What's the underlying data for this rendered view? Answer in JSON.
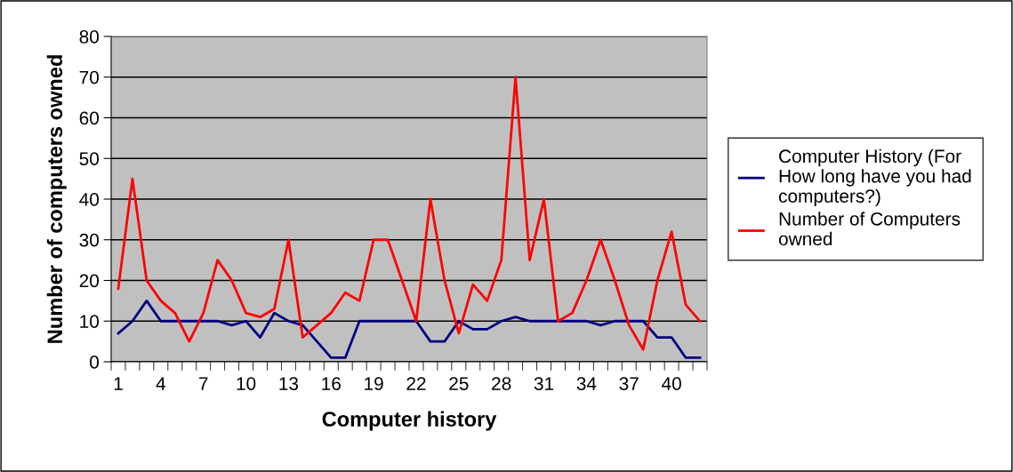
{
  "chart_data": {
    "type": "line",
    "xlabel": "Computer history",
    "ylabel": "Number of computers owned",
    "categories": [
      "1",
      null,
      null,
      "4",
      null,
      null,
      "7",
      null,
      null,
      "10",
      null,
      null,
      "13",
      null,
      null,
      "16",
      null,
      null,
      "19",
      null,
      null,
      "22",
      null,
      null,
      "25",
      null,
      null,
      "28",
      null,
      null,
      "31",
      null,
      null,
      "34",
      null,
      null,
      "37",
      null,
      null,
      "40",
      null,
      null
    ],
    "series": [
      {
        "name": "Computer History (For How long have you had computers?)",
        "color": "#000080",
        "values": [
          7,
          10,
          15,
          10,
          10,
          10,
          10,
          10,
          9,
          10,
          6,
          12,
          10,
          9,
          5,
          1,
          1,
          10,
          10,
          10,
          10,
          10,
          5,
          5,
          10,
          8,
          8,
          10,
          11,
          10,
          10,
          10,
          10,
          10,
          9,
          10,
          10,
          10,
          6,
          6,
          1,
          1
        ]
      },
      {
        "name": "Number of Computers owned",
        "color": "#ff0000",
        "values": [
          18,
          45,
          20,
          15,
          12,
          5,
          12,
          25,
          20,
          12,
          11,
          13,
          30,
          6,
          9,
          12,
          17,
          15,
          30,
          30,
          20,
          10,
          40,
          20,
          7,
          19,
          15,
          25,
          70,
          25,
          40,
          10,
          12,
          20,
          30,
          20,
          9,
          3,
          20,
          32,
          14,
          10
        ]
      }
    ],
    "ylim": [
      0,
      80
    ],
    "yticks": [
      0,
      10,
      20,
      30,
      40,
      50,
      60,
      70,
      80
    ],
    "grid": "y",
    "legend": "right",
    "marker": "none",
    "line_style": "solid"
  }
}
